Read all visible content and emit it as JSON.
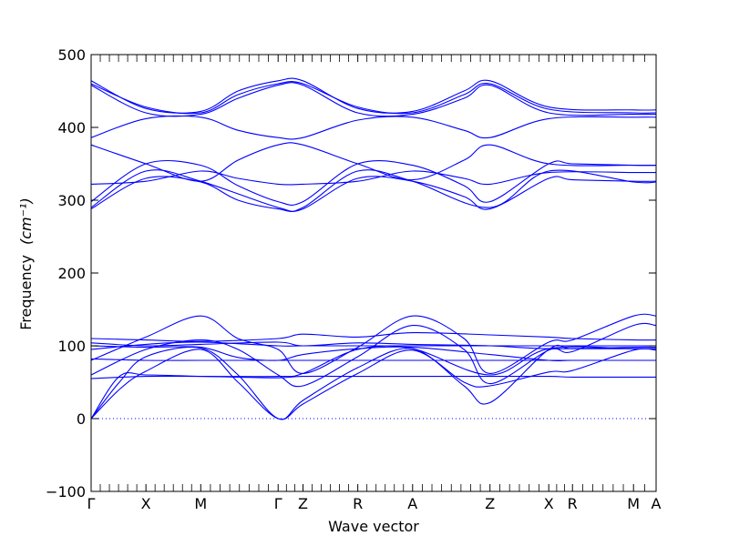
{
  "chart_data": {
    "type": "line",
    "title": "",
    "xlabel": "Wave vector",
    "ylabel": "Frequency",
    "ylabel_unit": "(cm⁻¹)",
    "ylim": [
      -100,
      500
    ],
    "yticks": [
      -100,
      0,
      100,
      200,
      300,
      400,
      500
    ],
    "grid": false,
    "legend": "none",
    "line_color": "#0000ff",
    "zero_line": 0,
    "xlim": [
      0,
      1
    ],
    "high_symmetry_points": [
      {
        "label": "Γ",
        "x": 0.0
      },
      {
        "label": "X",
        "x": 0.097
      },
      {
        "label": "M",
        "x": 0.194
      },
      {
        "label": "Γ",
        "x": 0.331
      },
      {
        "label": "Z",
        "x": 0.375
      },
      {
        "label": "R",
        "x": 0.472
      },
      {
        "label": "A",
        "x": 0.569
      },
      {
        "label": "Z",
        "x": 0.706
      },
      {
        "label": "X",
        "x": 0.81
      },
      {
        "label": "R",
        "x": 0.852
      },
      {
        "label": "M",
        "x": 0.96
      },
      {
        "label": "A",
        "x": 1.0
      }
    ],
    "series": [
      {
        "values": [
          [
            0,
            0
          ],
          [
            0.05,
            50
          ],
          [
            0.097,
            85
          ],
          [
            0.194,
            97
          ],
          [
            0.26,
            60
          ],
          [
            0.331,
            0
          ],
          [
            0.375,
            25
          ],
          [
            0.472,
            70
          ],
          [
            0.569,
            96
          ],
          [
            0.66,
            45
          ],
          [
            0.706,
            22
          ],
          [
            0.81,
            95
          ],
          [
            0.852,
            96
          ],
          [
            0.96,
            96
          ],
          [
            1.0,
            96
          ]
        ]
      },
      {
        "values": [
          [
            0,
            0
          ],
          [
            0.05,
            40
          ],
          [
            0.097,
            65
          ],
          [
            0.194,
            95
          ],
          [
            0.26,
            50
          ],
          [
            0.331,
            0
          ],
          [
            0.375,
            20
          ],
          [
            0.472,
            62
          ],
          [
            0.569,
            94
          ],
          [
            0.66,
            50
          ],
          [
            0.706,
            45
          ],
          [
            0.81,
            64
          ],
          [
            0.852,
            66
          ],
          [
            0.96,
            94
          ],
          [
            1.0,
            94
          ]
        ]
      },
      {
        "values": [
          [
            0,
            0
          ],
          [
            0.05,
            58
          ],
          [
            0.097,
            60
          ],
          [
            0.194,
            58
          ],
          [
            0.26,
            57
          ],
          [
            0.331,
            56
          ],
          [
            0.375,
            58
          ],
          [
            0.472,
            58
          ],
          [
            0.569,
            58
          ],
          [
            0.66,
            58
          ],
          [
            0.706,
            58
          ],
          [
            0.81,
            58
          ],
          [
            0.852,
            57
          ],
          [
            0.96,
            57
          ],
          [
            1.0,
            57
          ]
        ]
      },
      {
        "values": [
          [
            0,
            55
          ],
          [
            0.097,
            58
          ],
          [
            0.194,
            58
          ],
          [
            0.331,
            58
          ],
          [
            0.375,
            62
          ],
          [
            0.472,
            95
          ],
          [
            0.569,
            96
          ],
          [
            0.706,
            60
          ],
          [
            0.81,
            96
          ],
          [
            0.96,
            96
          ],
          [
            1.0,
            96
          ]
        ]
      },
      {
        "values": [
          [
            0,
            60
          ],
          [
            0.097,
            95
          ],
          [
            0.194,
            108
          ],
          [
            0.26,
            95
          ],
          [
            0.331,
            60
          ],
          [
            0.375,
            45
          ],
          [
            0.472,
            85
          ],
          [
            0.569,
            128
          ],
          [
            0.66,
            95
          ],
          [
            0.706,
            48
          ],
          [
            0.81,
            94
          ],
          [
            0.852,
            92
          ],
          [
            0.96,
            128
          ],
          [
            1.0,
            128
          ]
        ]
      },
      {
        "values": [
          [
            0,
            80
          ],
          [
            0.097,
            112
          ],
          [
            0.194,
            141
          ],
          [
            0.26,
            110
          ],
          [
            0.331,
            95
          ],
          [
            0.375,
            62
          ],
          [
            0.472,
            98
          ],
          [
            0.569,
            141
          ],
          [
            0.66,
            110
          ],
          [
            0.706,
            62
          ],
          [
            0.81,
            105
          ],
          [
            0.852,
            108
          ],
          [
            0.96,
            141
          ],
          [
            1.0,
            141
          ]
        ]
      },
      {
        "values": [
          [
            0,
            95
          ],
          [
            0.097,
            102
          ],
          [
            0.194,
            105
          ],
          [
            0.331,
            100
          ],
          [
            0.375,
            100
          ],
          [
            0.472,
            100
          ],
          [
            0.569,
            100
          ],
          [
            0.706,
            100
          ],
          [
            0.81,
            100
          ],
          [
            0.96,
            100
          ],
          [
            1.0,
            100
          ]
        ]
      },
      {
        "values": [
          [
            0,
            110
          ],
          [
            0.097,
            108
          ],
          [
            0.194,
            106
          ],
          [
            0.331,
            110
          ],
          [
            0.375,
            116
          ],
          [
            0.472,
            112
          ],
          [
            0.569,
            118
          ],
          [
            0.706,
            115
          ],
          [
            0.81,
            112
          ],
          [
            0.852,
            110
          ],
          [
            0.96,
            108
          ],
          [
            1.0,
            108
          ]
        ]
      },
      {
        "values": [
          [
            0,
            100
          ],
          [
            0.097,
            98
          ],
          [
            0.194,
            98
          ],
          [
            0.26,
            84
          ],
          [
            0.331,
            80
          ],
          [
            0.375,
            88
          ],
          [
            0.472,
            96
          ],
          [
            0.569,
            98
          ],
          [
            0.706,
            88
          ],
          [
            0.81,
            80
          ],
          [
            0.852,
            80
          ],
          [
            0.96,
            80
          ],
          [
            1.0,
            80
          ]
        ]
      },
      {
        "values": [
          [
            0,
            82
          ],
          [
            0.097,
            80
          ],
          [
            0.194,
            80
          ],
          [
            0.331,
            80
          ],
          [
            0.375,
            80
          ],
          [
            0.472,
            80
          ],
          [
            0.569,
            80
          ],
          [
            0.706,
            80
          ],
          [
            0.81,
            80
          ],
          [
            0.96,
            80
          ],
          [
            1.0,
            80
          ]
        ]
      },
      {
        "values": [
          [
            0,
            104
          ],
          [
            0.097,
            100
          ],
          [
            0.194,
            102
          ],
          [
            0.331,
            105
          ],
          [
            0.375,
            100
          ],
          [
            0.472,
            104
          ],
          [
            0.569,
            102
          ],
          [
            0.706,
            100
          ],
          [
            0.81,
            96
          ],
          [
            0.96,
            98
          ],
          [
            1.0,
            98
          ]
        ]
      },
      {
        "values": [
          [
            0,
            288
          ],
          [
            0.097,
            330
          ],
          [
            0.194,
            325
          ],
          [
            0.26,
            300
          ],
          [
            0.331,
            288
          ],
          [
            0.375,
            288
          ],
          [
            0.472,
            330
          ],
          [
            0.569,
            326
          ],
          [
            0.66,
            305
          ],
          [
            0.706,
            288
          ],
          [
            0.81,
            330
          ],
          [
            0.852,
            328
          ],
          [
            0.96,
            326
          ],
          [
            1.0,
            326
          ]
        ]
      },
      {
        "values": [
          [
            0,
            290
          ],
          [
            0.097,
            340
          ],
          [
            0.194,
            326
          ],
          [
            0.331,
            290
          ],
          [
            0.375,
            290
          ],
          [
            0.472,
            340
          ],
          [
            0.569,
            326
          ],
          [
            0.706,
            290
          ],
          [
            0.81,
            340
          ],
          [
            0.96,
            325
          ],
          [
            1.0,
            325
          ]
        ]
      },
      {
        "values": [
          [
            0,
            298
          ],
          [
            0.097,
            350
          ],
          [
            0.194,
            348
          ],
          [
            0.26,
            320
          ],
          [
            0.331,
            298
          ],
          [
            0.375,
            298
          ],
          [
            0.472,
            350
          ],
          [
            0.569,
            348
          ],
          [
            0.66,
            320
          ],
          [
            0.706,
            298
          ],
          [
            0.81,
            350
          ],
          [
            0.852,
            350
          ],
          [
            0.96,
            348
          ],
          [
            1.0,
            348
          ]
        ]
      },
      {
        "values": [
          [
            0,
            322
          ],
          [
            0.097,
            326
          ],
          [
            0.194,
            340
          ],
          [
            0.26,
            330
          ],
          [
            0.331,
            322
          ],
          [
            0.375,
            322
          ],
          [
            0.472,
            326
          ],
          [
            0.569,
            340
          ],
          [
            0.66,
            330
          ],
          [
            0.706,
            322
          ],
          [
            0.81,
            338
          ],
          [
            0.96,
            338
          ],
          [
            1.0,
            338
          ]
        ]
      },
      {
        "values": [
          [
            0,
            376
          ],
          [
            0.097,
            350
          ],
          [
            0.194,
            326
          ],
          [
            0.26,
            355
          ],
          [
            0.331,
            376
          ],
          [
            0.375,
            376
          ],
          [
            0.472,
            350
          ],
          [
            0.569,
            328
          ],
          [
            0.66,
            355
          ],
          [
            0.706,
            376
          ],
          [
            0.81,
            350
          ],
          [
            0.96,
            348
          ],
          [
            1.0,
            348
          ]
        ]
      },
      {
        "values": [
          [
            0,
            386
          ],
          [
            0.097,
            412
          ],
          [
            0.194,
            414
          ],
          [
            0.26,
            396
          ],
          [
            0.331,
            386
          ],
          [
            0.375,
            386
          ],
          [
            0.472,
            410
          ],
          [
            0.569,
            414
          ],
          [
            0.66,
            396
          ],
          [
            0.706,
            386
          ],
          [
            0.81,
            412
          ],
          [
            0.96,
            414
          ],
          [
            1.0,
            414
          ]
        ]
      },
      {
        "values": [
          [
            0,
            458
          ],
          [
            0.097,
            420
          ],
          [
            0.194,
            418
          ],
          [
            0.26,
            440
          ],
          [
            0.331,
            458
          ],
          [
            0.375,
            458
          ],
          [
            0.472,
            420
          ],
          [
            0.569,
            418
          ],
          [
            0.66,
            440
          ],
          [
            0.706,
            458
          ],
          [
            0.81,
            420
          ],
          [
            0.96,
            418
          ],
          [
            1.0,
            418
          ]
        ]
      },
      {
        "values": [
          [
            0,
            460
          ],
          [
            0.097,
            428
          ],
          [
            0.194,
            420
          ],
          [
            0.26,
            445
          ],
          [
            0.331,
            460
          ],
          [
            0.375,
            460
          ],
          [
            0.472,
            428
          ],
          [
            0.569,
            420
          ],
          [
            0.66,
            445
          ],
          [
            0.706,
            460
          ],
          [
            0.81,
            425
          ],
          [
            0.96,
            420
          ],
          [
            1.0,
            420
          ]
        ]
      },
      {
        "values": [
          [
            0,
            464
          ],
          [
            0.097,
            426
          ],
          [
            0.194,
            422
          ],
          [
            0.26,
            450
          ],
          [
            0.331,
            464
          ],
          [
            0.375,
            464
          ],
          [
            0.472,
            426
          ],
          [
            0.569,
            422
          ],
          [
            0.66,
            450
          ],
          [
            0.706,
            464
          ],
          [
            0.81,
            428
          ],
          [
            0.96,
            424
          ],
          [
            1.0,
            424
          ]
        ]
      }
    ]
  }
}
